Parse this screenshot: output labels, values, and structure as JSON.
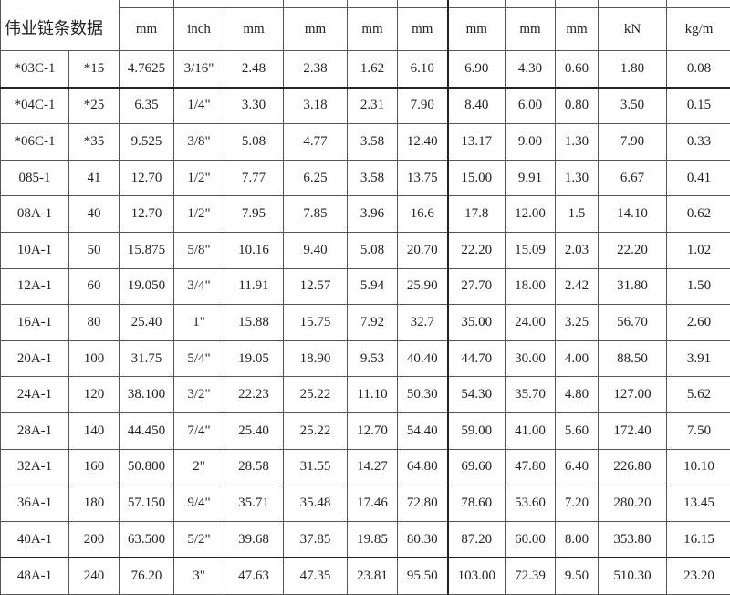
{
  "title": "伟业链条数据",
  "units": [
    "mm",
    "inch",
    "mm",
    "mm",
    "mm",
    "mm",
    "mm",
    "mm",
    "mm",
    "kN",
    "kg/m"
  ],
  "rows": [
    [
      "*03C-1",
      "*15",
      "4.7625",
      "3/16\"",
      "2.48",
      "2.38",
      "1.62",
      "6.10",
      "6.90",
      "4.30",
      "0.60",
      "1.80",
      "0.08"
    ],
    [
      "*04C-1",
      "*25",
      "6.35",
      "1/4\"",
      "3.30",
      "3.18",
      "2.31",
      "7.90",
      "8.40",
      "6.00",
      "0.80",
      "3.50",
      "0.15"
    ],
    [
      "*06C-1",
      "*35",
      "9.525",
      "3/8\"",
      "5.08",
      "4.77",
      "3.58",
      "12.40",
      "13.17",
      "9.00",
      "1.30",
      "7.90",
      "0.33"
    ],
    [
      "085-1",
      "41",
      "12.70",
      "1/2\"",
      "7.77",
      "6.25",
      "3.58",
      "13.75",
      "15.00",
      "9.91",
      "1.30",
      "6.67",
      "0.41"
    ],
    [
      "08A-1",
      "40",
      "12.70",
      "1/2\"",
      "7.95",
      "7.85",
      "3.96",
      "16.6",
      "17.8",
      "12.00",
      "1.5",
      "14.10",
      "0.62"
    ],
    [
      "10A-1",
      "50",
      "15.875",
      "5/8\"",
      "10.16",
      "9.40",
      "5.08",
      "20.70",
      "22.20",
      "15.09",
      "2.03",
      "22.20",
      "1.02"
    ],
    [
      "12A-1",
      "60",
      "19.050",
      "3/4\"",
      "11.91",
      "12.57",
      "5.94",
      "25.90",
      "27.70",
      "18.00",
      "2.42",
      "31.80",
      "1.50"
    ],
    [
      "16A-1",
      "80",
      "25.40",
      "1\"",
      "15.88",
      "15.75",
      "7.92",
      "32.7",
      "35.00",
      "24.00",
      "3.25",
      "56.70",
      "2.60"
    ],
    [
      "20A-1",
      "100",
      "31.75",
      "5/4\"",
      "19.05",
      "18.90",
      "9.53",
      "40.40",
      "44.70",
      "30.00",
      "4.00",
      "88.50",
      "3.91"
    ],
    [
      "24A-1",
      "120",
      "38.100",
      "3/2\"",
      "22.23",
      "25.22",
      "11.10",
      "50.30",
      "54.30",
      "35.70",
      "4.80",
      "127.00",
      "5.62"
    ],
    [
      "28A-1",
      "140",
      "44.450",
      "7/4\"",
      "25.40",
      "25.22",
      "12.70",
      "54.40",
      "59.00",
      "41.00",
      "5.60",
      "172.40",
      "7.50"
    ],
    [
      "32A-1",
      "160",
      "50.800",
      "2\"",
      "28.58",
      "31.55",
      "14.27",
      "64.80",
      "69.60",
      "47.80",
      "6.40",
      "226.80",
      "10.10"
    ],
    [
      "36A-1",
      "180",
      "57.150",
      "9/4\"",
      "35.71",
      "35.48",
      "17.46",
      "72.80",
      "78.60",
      "53.60",
      "7.20",
      "280.20",
      "13.45"
    ],
    [
      "40A-1",
      "200",
      "63.500",
      "5/2\"",
      "39.68",
      "37.85",
      "19.85",
      "80.30",
      "87.20",
      "60.00",
      "8.00",
      "353.80",
      "16.15"
    ],
    [
      "48A-1",
      "240",
      "76.20",
      "3\"",
      "47.63",
      "47.35",
      "23.81",
      "95.50",
      "103.00",
      "72.39",
      "9.50",
      "510.30",
      "23.20"
    ]
  ]
}
